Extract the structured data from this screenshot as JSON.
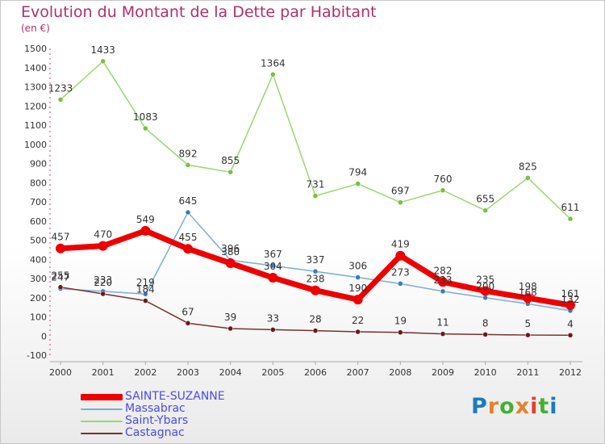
{
  "title": "Evolution du Montant de la Dette par Habitant",
  "subtitle": "(en €)",
  "logo": {
    "text": "Proxiti",
    "colors": [
      "#1a7ac0",
      "#e8802a",
      "#44b030",
      "#e8802a",
      "#e04030",
      "#44b030",
      "#1a7ac0"
    ]
  },
  "chart_data": {
    "type": "line",
    "x": [
      "2000",
      "2001",
      "2002",
      "2003",
      "2004",
      "2005",
      "2006",
      "2007",
      "2008",
      "2009",
      "2010",
      "2011",
      "2012"
    ],
    "ylim": [
      -100,
      1500
    ],
    "yticks": [
      "-100",
      "0",
      "100",
      "200",
      "300",
      "400",
      "500",
      "600",
      "700",
      "800",
      "900",
      "1000",
      "1100",
      "1200",
      "1300",
      "1400",
      "1500"
    ],
    "grid": false,
    "legend_position": "bottom-left",
    "series": [
      {
        "name": "Saint-Ybars",
        "color": "#98d870",
        "marker": "#78c040",
        "width": 1.5,
        "values": [
          1233,
          1433,
          1083,
          892,
          855,
          1364,
          731,
          794,
          697,
          760,
          655,
          825,
          611
        ],
        "labels": [
          "1233",
          "1433",
          "1083",
          "892",
          "855",
          "1364",
          "731",
          "794",
          "697",
          "760",
          "655",
          "825",
          "611"
        ]
      },
      {
        "name": "Massabrac",
        "color": "#7aaed6",
        "marker": "#3a7ab8",
        "width": 1.5,
        "values": [
          247,
          233,
          219,
          645,
          396,
          367,
          337,
          306,
          273,
          233,
          200,
          168,
          132
        ],
        "labels": [
          "247",
          "233",
          "219",
          "645",
          "396",
          "367",
          "337",
          "306",
          "273",
          "233",
          "200",
          "168",
          "132"
        ]
      },
      {
        "name": "Castagnac",
        "color": "#7a3030",
        "marker": "#6a1818",
        "width": 1.5,
        "values": [
          255,
          220,
          184,
          67,
          39,
          33,
          28,
          22,
          19,
          11,
          8,
          5,
          4
        ],
        "labels": [
          "255",
          "220",
          "184",
          "67",
          "39",
          "33",
          "28",
          "22",
          "19",
          "11",
          "8",
          "5",
          "4"
        ]
      },
      {
        "name": "SAINTE-SUZANNE",
        "color": "#ee0000",
        "marker": "#ee0000",
        "width": 7,
        "values": [
          457,
          470,
          549,
          455,
          380,
          304,
          238,
          190,
          419,
          282,
          235,
          198,
          161
        ],
        "labels": [
          "457",
          "470",
          "549",
          "455",
          "380",
          "304",
          "238",
          "190",
          "419",
          "282",
          "235",
          "198",
          "161"
        ]
      }
    ],
    "legend_order": [
      "SAINTE-SUZANNE",
      "Massabrac",
      "Saint-Ybars",
      "Castagnac"
    ]
  }
}
